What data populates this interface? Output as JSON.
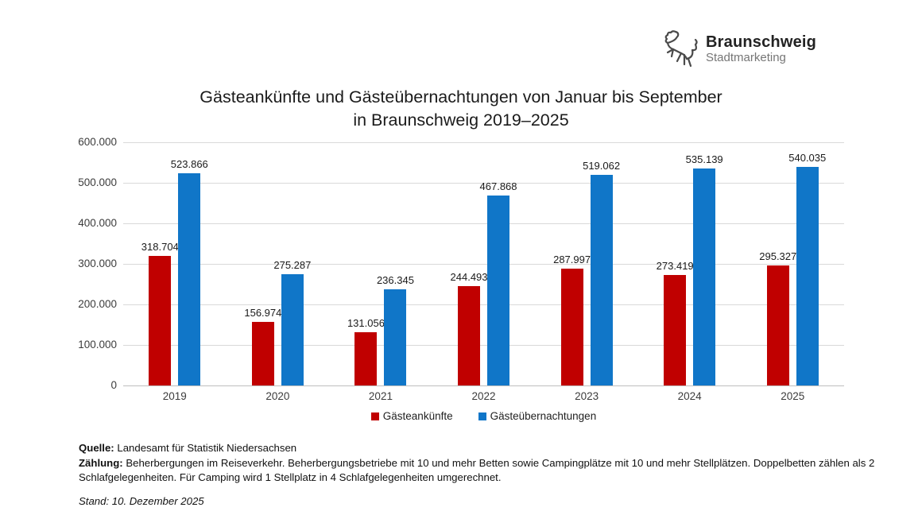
{
  "logo": {
    "name": "Braunschweig",
    "subtitle": "Stadtmarketing",
    "lion_icon": "braunschweig-lion"
  },
  "title": {
    "line1": "Gästeankünfte und Gästeübernachtungen von Januar bis September",
    "line2": "in Braunschweig 2019–2025"
  },
  "chart_data": {
    "type": "bar",
    "title": "Gästeankünfte und Gästeübernachtungen von Januar bis September in Braunschweig 2019–2025",
    "categories": [
      "2019",
      "2020",
      "2021",
      "2022",
      "2023",
      "2024",
      "2025"
    ],
    "series": [
      {
        "name": "Gästeankünfte",
        "color": "#c00000",
        "values": [
          318704,
          156974,
          131056,
          244493,
          287997,
          273419,
          295327
        ],
        "labels": [
          "318.704",
          "156.974",
          "131.056",
          "244.493",
          "287.997",
          "273.419",
          "295.327"
        ]
      },
      {
        "name": "Gästeübernachtungen",
        "color": "#1076c8",
        "values": [
          523866,
          275287,
          236345,
          467868,
          519062,
          535139,
          540035
        ],
        "labels": [
          "523.866",
          "275.287",
          "236.345",
          "467.868",
          "519.062",
          "535.139",
          "540.035"
        ]
      }
    ],
    "xlabel": "",
    "ylabel": "",
    "ylim": [
      0,
      600000
    ],
    "ytick_labels_top_down": [
      "600.000",
      "500.000",
      "400.000",
      "300.000",
      "200.000",
      "100.000",
      "0"
    ],
    "grid": true,
    "legend_position": "bottom"
  },
  "footer": {
    "source_label": "Quelle:",
    "source_text": " Landesamt für Statistik Niedersachsen",
    "count_label": "Zählung:",
    "count_text": " Beherbergungen im Reiseverkehr. Beherbergungsbetriebe mit 10 und mehr Betten sowie Campingplätze mit 10 und mehr Stellplätzen. Doppelbetten zählen als 2 Schlafgelegenheiten. Für Camping wird 1 Stellplatz in 4 Schlafgelegenheiten umgerechnet.",
    "stand_text": "Stand: 10. Dezember 2025"
  },
  "colors": {
    "arrivals": "#c00000",
    "overnights": "#1076c8",
    "gridline": "#d9d9d9",
    "axis_line": "#bfbfbf"
  }
}
